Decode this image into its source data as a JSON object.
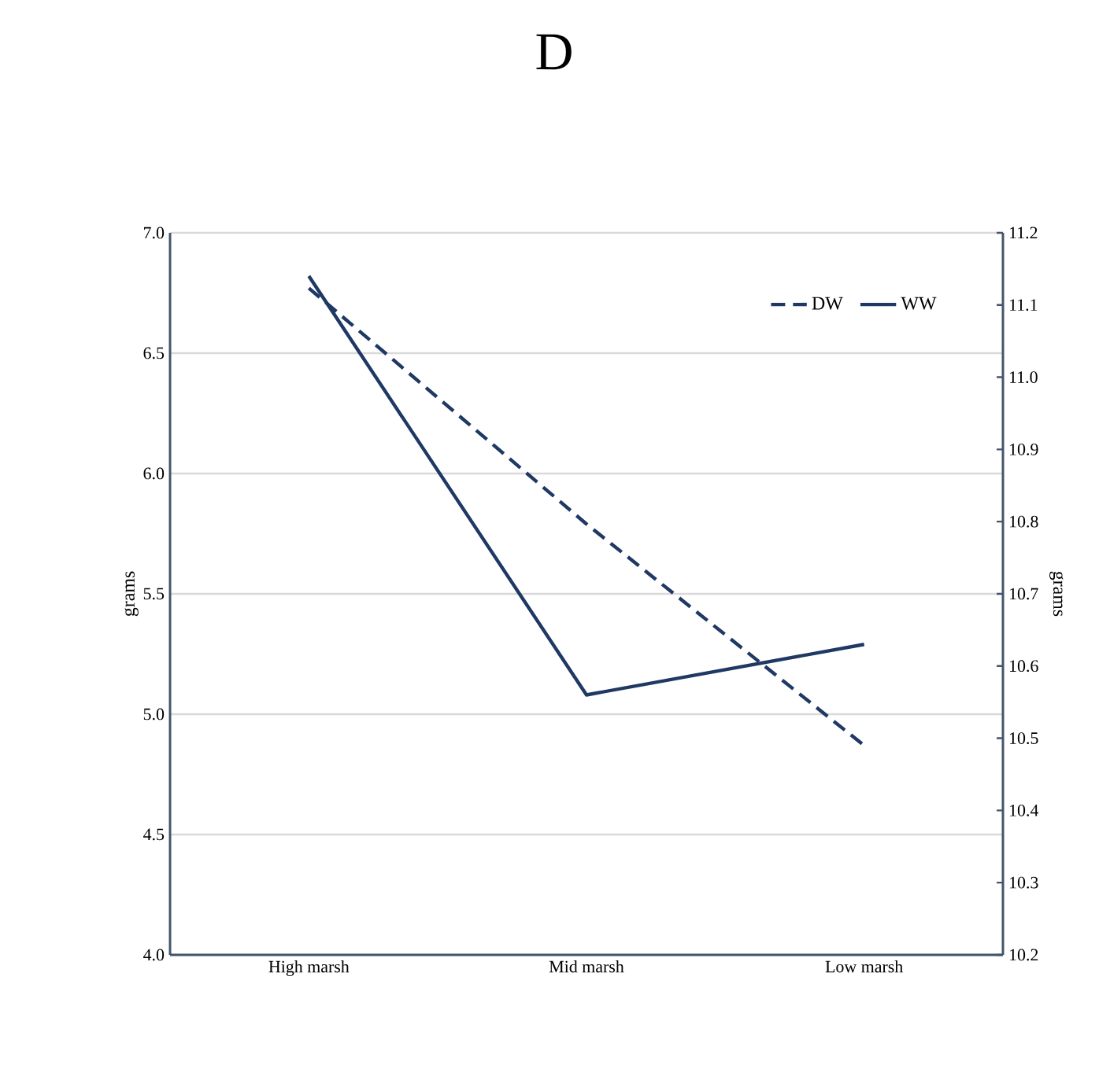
{
  "chart_data": {
    "type": "line",
    "title": "D",
    "categories": [
      "High marsh",
      "Mid marsh",
      "Low marsh"
    ],
    "ylabel": "grams",
    "y2label": "grams",
    "ylim": [
      4.0,
      7.0
    ],
    "yticks": [
      {
        "value": 4,
        "label": "4.0"
      },
      4.5,
      {
        "value": 5,
        "label": "5.0"
      },
      5.5,
      {
        "value": 6,
        "label": "6.0"
      },
      6.5,
      {
        "value": 7,
        "label": "7.0"
      }
    ],
    "y2lim": [
      10.2,
      11.2
    ],
    "y2ticks": [
      10.2,
      10.3,
      10.4,
      10.5,
      10.6,
      10.7,
      10.8,
      10.9,
      {
        "value": 11,
        "label": "11.0"
      },
      11.1,
      11.2
    ],
    "grid": "y",
    "legend": "top right",
    "marker": "none",
    "series": [
      {
        "name": "DW",
        "color": "#1f3864",
        "line_style": "dashed",
        "values": [
          6.77,
          5.79,
          4.87
        ]
      },
      {
        "name": "WW",
        "color": "#1f3864",
        "line_style": "solid",
        "axis": "y2",
        "values": [
          11.14,
          10.56,
          10.63
        ]
      }
    ]
  }
}
